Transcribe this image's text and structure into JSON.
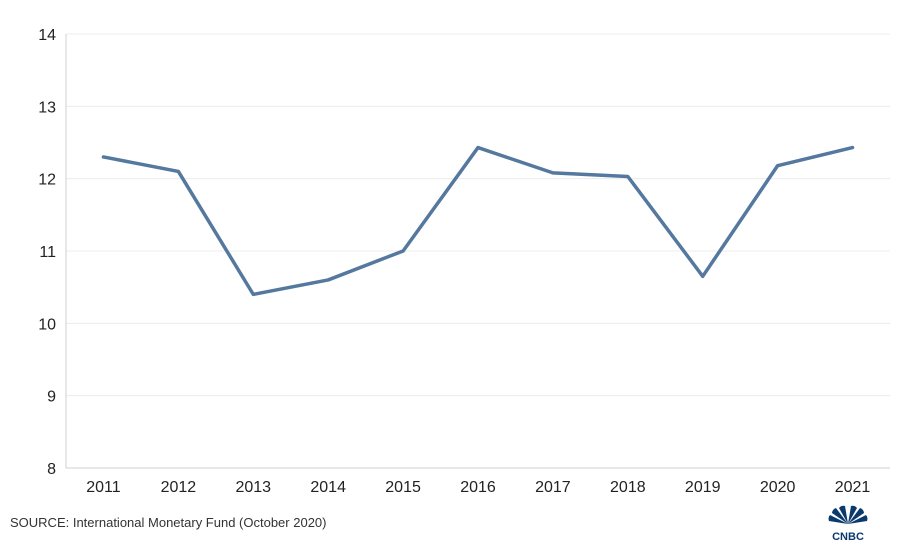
{
  "source_note": "SOURCE: International Monetary Fund (October 2020)",
  "logo_text": "CNBC",
  "chart_data": {
    "type": "line",
    "title": "",
    "xlabel": "",
    "ylabel": "",
    "categories": [
      "2011",
      "2012",
      "2013",
      "2014",
      "2015",
      "2016",
      "2017",
      "2018",
      "2019",
      "2020",
      "2021"
    ],
    "series": [
      {
        "values": [
          12.3,
          12.1,
          10.4,
          10.6,
          11.0,
          12.43,
          12.08,
          12.03,
          10.65,
          12.18,
          12.43
        ],
        "color": "#55789f"
      }
    ],
    "ylim": [
      8,
      14
    ],
    "yticks": [
      8,
      9,
      10,
      11,
      12,
      13,
      14
    ],
    "grid": true,
    "legend": "none"
  }
}
